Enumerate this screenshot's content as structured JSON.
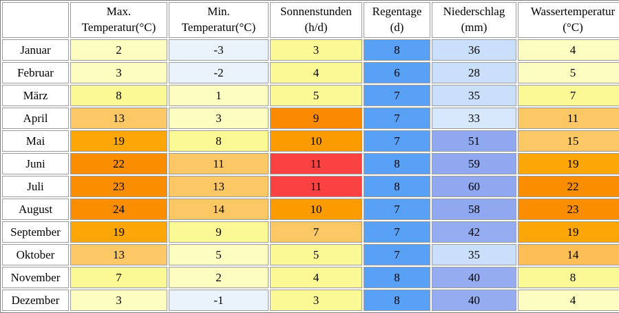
{
  "table": {
    "header": {
      "columns": [
        {
          "key": "month",
          "line1": "",
          "line2": ""
        },
        {
          "key": "max_temp",
          "line1": "Max.",
          "line2": "Temperatur(°C)"
        },
        {
          "key": "min_temp",
          "line1": "Min.",
          "line2": "Temperatur(°C)"
        },
        {
          "key": "sun_hours",
          "line1": "Sonnenstunden",
          "line2": "(h/d)"
        },
        {
          "key": "rain_days",
          "line1": "Regentage",
          "line2": "(d)"
        },
        {
          "key": "precipitation",
          "line1": "Niederschlag",
          "line2": "(mm)"
        },
        {
          "key": "water_temp",
          "line1": "Wassertemperatur",
          "line2": "(°C)"
        }
      ]
    },
    "palette": {
      "pale_blue": "#EAF3FC",
      "pale_yellow": "#FEFDC1",
      "yellow": "#FAF996",
      "light_orange": "#FCC865",
      "orange": "#FDA607",
      "dark_orange": "#FB8D00",
      "red": "#FA4243",
      "rain_blue": "#58A1F6",
      "precip_light": "#CADFFA",
      "precip_lighter": "#D8E8FC",
      "precip_medium": "#95ACF1",
      "precip_dark": "#8FA8EF",
      "border_gray": "#9B9B9B"
    },
    "rows": [
      {
        "month": "Januar",
        "cells": [
          {
            "key": "max_temp",
            "value": "2",
            "bg": "#FEFDC1"
          },
          {
            "key": "min_temp",
            "value": "-3",
            "bg": "#EAF3FC"
          },
          {
            "key": "sun_hours",
            "value": "3",
            "bg": "#FAF996"
          },
          {
            "key": "rain_days",
            "value": "8",
            "bg": "#58A1F6"
          },
          {
            "key": "precipitation",
            "value": "36",
            "bg": "#CADFFA"
          },
          {
            "key": "water_temp",
            "value": "4",
            "bg": "#FEFDC1"
          }
        ]
      },
      {
        "month": "Februar",
        "cells": [
          {
            "key": "max_temp",
            "value": "3",
            "bg": "#FEFDC1"
          },
          {
            "key": "min_temp",
            "value": "-2",
            "bg": "#EAF3FC"
          },
          {
            "key": "sun_hours",
            "value": "4",
            "bg": "#FAF996"
          },
          {
            "key": "rain_days",
            "value": "6",
            "bg": "#58A1F6"
          },
          {
            "key": "precipitation",
            "value": "28",
            "bg": "#CADFFA"
          },
          {
            "key": "water_temp",
            "value": "5",
            "bg": "#FEFDC1"
          }
        ]
      },
      {
        "month": "März",
        "cells": [
          {
            "key": "max_temp",
            "value": "8",
            "bg": "#FAF996"
          },
          {
            "key": "min_temp",
            "value": "1",
            "bg": "#FEFDC1"
          },
          {
            "key": "sun_hours",
            "value": "5",
            "bg": "#FAF996"
          },
          {
            "key": "rain_days",
            "value": "7",
            "bg": "#58A1F6"
          },
          {
            "key": "precipitation",
            "value": "35",
            "bg": "#CADFFA"
          },
          {
            "key": "water_temp",
            "value": "7",
            "bg": "#FAF996"
          }
        ]
      },
      {
        "month": "April",
        "cells": [
          {
            "key": "max_temp",
            "value": "13",
            "bg": "#FCC865"
          },
          {
            "key": "min_temp",
            "value": "3",
            "bg": "#FEFDC1"
          },
          {
            "key": "sun_hours",
            "value": "9",
            "bg": "#FB8A00"
          },
          {
            "key": "rain_days",
            "value": "7",
            "bg": "#58A1F6"
          },
          {
            "key": "precipitation",
            "value": "33",
            "bg": "#D8E8FC"
          },
          {
            "key": "water_temp",
            "value": "11",
            "bg": "#FCC865"
          }
        ]
      },
      {
        "month": "Mai",
        "cells": [
          {
            "key": "max_temp",
            "value": "19",
            "bg": "#FDA607"
          },
          {
            "key": "min_temp",
            "value": "8",
            "bg": "#FAF996"
          },
          {
            "key": "sun_hours",
            "value": "10",
            "bg": "#FC9B00"
          },
          {
            "key": "rain_days",
            "value": "7",
            "bg": "#58A1F6"
          },
          {
            "key": "precipitation",
            "value": "51",
            "bg": "#8FA8EF"
          },
          {
            "key": "water_temp",
            "value": "15",
            "bg": "#FCC865"
          }
        ]
      },
      {
        "month": "Juni",
        "cells": [
          {
            "key": "max_temp",
            "value": "22",
            "bg": "#FB8D00"
          },
          {
            "key": "min_temp",
            "value": "11",
            "bg": "#FCC865"
          },
          {
            "key": "sun_hours",
            "value": "11",
            "bg": "#FA4243"
          },
          {
            "key": "rain_days",
            "value": "8",
            "bg": "#58A1F6"
          },
          {
            "key": "precipitation",
            "value": "59",
            "bg": "#8FA8EF"
          },
          {
            "key": "water_temp",
            "value": "19",
            "bg": "#FDA607"
          }
        ]
      },
      {
        "month": "Juli",
        "cells": [
          {
            "key": "max_temp",
            "value": "23",
            "bg": "#FB8D00"
          },
          {
            "key": "min_temp",
            "value": "13",
            "bg": "#FCC865"
          },
          {
            "key": "sun_hours",
            "value": "11",
            "bg": "#FA4243"
          },
          {
            "key": "rain_days",
            "value": "8",
            "bg": "#58A1F6"
          },
          {
            "key": "precipitation",
            "value": "60",
            "bg": "#8FA8EF"
          },
          {
            "key": "water_temp",
            "value": "22",
            "bg": "#FB8D00"
          }
        ]
      },
      {
        "month": "August",
        "cells": [
          {
            "key": "max_temp",
            "value": "24",
            "bg": "#FB8D00"
          },
          {
            "key": "min_temp",
            "value": "14",
            "bg": "#FCC865"
          },
          {
            "key": "sun_hours",
            "value": "10",
            "bg": "#FC9B00"
          },
          {
            "key": "rain_days",
            "value": "7",
            "bg": "#58A1F6"
          },
          {
            "key": "precipitation",
            "value": "58",
            "bg": "#8FA8EF"
          },
          {
            "key": "water_temp",
            "value": "23",
            "bg": "#FB8D00"
          }
        ]
      },
      {
        "month": "September",
        "cells": [
          {
            "key": "max_temp",
            "value": "19",
            "bg": "#FDA607"
          },
          {
            "key": "min_temp",
            "value": "9",
            "bg": "#FAF996"
          },
          {
            "key": "sun_hours",
            "value": "7",
            "bg": "#FCC865"
          },
          {
            "key": "rain_days",
            "value": "7",
            "bg": "#58A1F6"
          },
          {
            "key": "precipitation",
            "value": "42",
            "bg": "#95ACF1"
          },
          {
            "key": "water_temp",
            "value": "19",
            "bg": "#FDA607"
          }
        ]
      },
      {
        "month": "Oktober",
        "cells": [
          {
            "key": "max_temp",
            "value": "13",
            "bg": "#FCC865"
          },
          {
            "key": "min_temp",
            "value": "5",
            "bg": "#FEFDC1"
          },
          {
            "key": "sun_hours",
            "value": "5",
            "bg": "#FAF996"
          },
          {
            "key": "rain_days",
            "value": "7",
            "bg": "#58A1F6"
          },
          {
            "key": "precipitation",
            "value": "35",
            "bg": "#CADFFA"
          },
          {
            "key": "water_temp",
            "value": "14",
            "bg": "#FCBE55"
          }
        ]
      },
      {
        "month": "November",
        "cells": [
          {
            "key": "max_temp",
            "value": "7",
            "bg": "#FAF996"
          },
          {
            "key": "min_temp",
            "value": "2",
            "bg": "#FEFDC1"
          },
          {
            "key": "sun_hours",
            "value": "4",
            "bg": "#FAF996"
          },
          {
            "key": "rain_days",
            "value": "8",
            "bg": "#58A1F6"
          },
          {
            "key": "precipitation",
            "value": "40",
            "bg": "#95ACF1"
          },
          {
            "key": "water_temp",
            "value": "8",
            "bg": "#FAF996"
          }
        ]
      },
      {
        "month": "Dezember",
        "cells": [
          {
            "key": "max_temp",
            "value": "3",
            "bg": "#FEFDC1"
          },
          {
            "key": "min_temp",
            "value": "-1",
            "bg": "#EAF3FC"
          },
          {
            "key": "sun_hours",
            "value": "3",
            "bg": "#FAF996"
          },
          {
            "key": "rain_days",
            "value": "8",
            "bg": "#58A1F6"
          },
          {
            "key": "precipitation",
            "value": "40",
            "bg": "#95ACF1"
          },
          {
            "key": "water_temp",
            "value": "4",
            "bg": "#FEFDC1"
          }
        ]
      }
    ]
  },
  "chart_data": {
    "type": "table",
    "title": "",
    "categories": [
      "Januar",
      "Februar",
      "März",
      "April",
      "Mai",
      "Juni",
      "Juli",
      "August",
      "September",
      "Oktober",
      "November",
      "Dezember"
    ],
    "series": [
      {
        "name": "Max. Temperatur(°C)",
        "values": [
          2,
          3,
          8,
          13,
          19,
          22,
          23,
          24,
          19,
          13,
          7,
          3
        ]
      },
      {
        "name": "Min. Temperatur(°C)",
        "values": [
          -3,
          -2,
          1,
          3,
          8,
          11,
          13,
          14,
          9,
          5,
          2,
          -1
        ]
      },
      {
        "name": "Sonnenstunden (h/d)",
        "values": [
          3,
          4,
          5,
          9,
          10,
          11,
          11,
          10,
          7,
          5,
          4,
          3
        ]
      },
      {
        "name": "Regentage (d)",
        "values": [
          8,
          6,
          7,
          7,
          7,
          8,
          8,
          7,
          7,
          7,
          8,
          8
        ]
      },
      {
        "name": "Niederschlag (mm)",
        "values": [
          36,
          28,
          35,
          33,
          51,
          59,
          60,
          58,
          42,
          35,
          40,
          40
        ]
      },
      {
        "name": "Wassertemperatur (°C)",
        "values": [
          4,
          5,
          7,
          11,
          15,
          19,
          22,
          23,
          19,
          14,
          8,
          4
        ]
      }
    ],
    "layout": {
      "color_coded_cells": true,
      "grid": true,
      "legend_position": "none"
    }
  }
}
